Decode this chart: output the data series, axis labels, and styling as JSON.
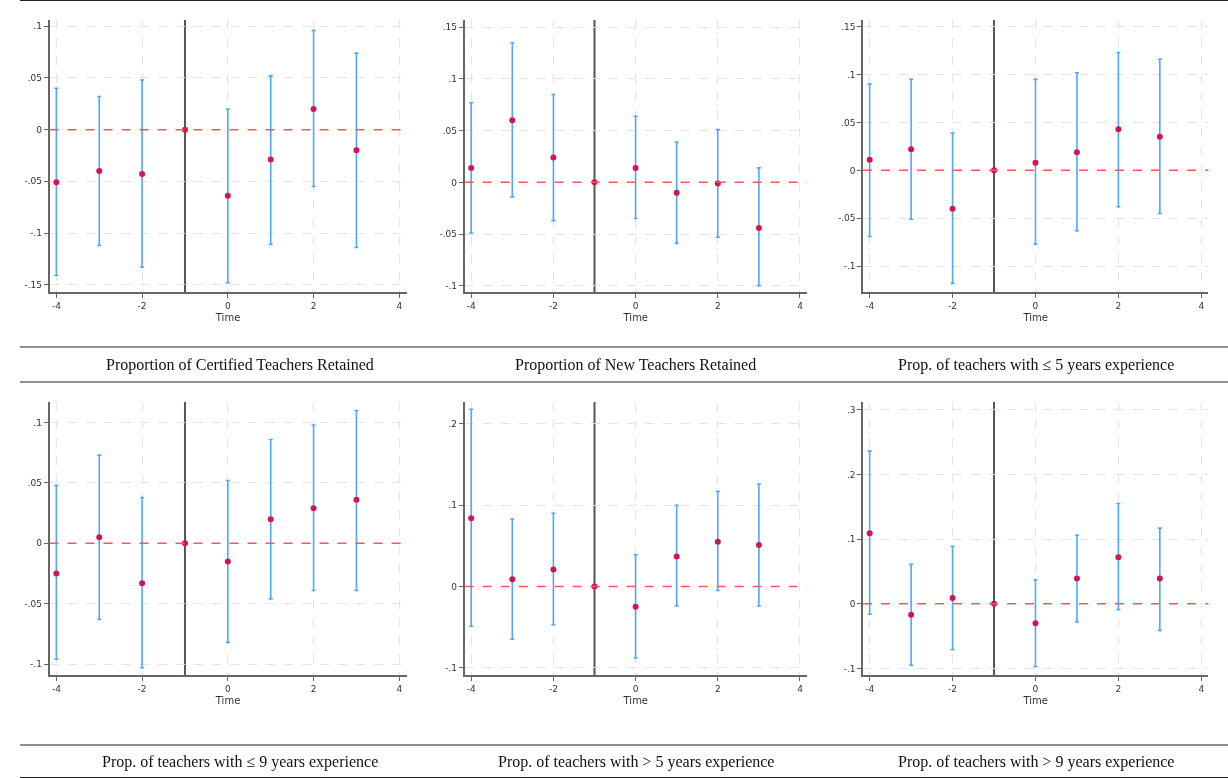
{
  "chart_data": [
    {
      "type": "scatter",
      "title": "Proportion of Certified Teachers Retained",
      "xlabel": "Time",
      "x": [
        -4,
        -3,
        -2,
        -1,
        0,
        1,
        2,
        3
      ],
      "xlim": [
        -4.16,
        4.17
      ],
      "xticks": [
        -4,
        -2,
        0,
        2,
        4
      ],
      "ylim": [
        -0.157,
        0.106
      ],
      "yticks": [
        {
          "value": 0.1,
          "label": ".1"
        },
        {
          "value": 0.05,
          "label": ".05"
        },
        0,
        {
          "value": -0.05,
          "label": "-.05"
        },
        {
          "value": -0.1,
          "label": "-.1"
        },
        {
          "value": -0.15,
          "label": "-.15"
        }
      ],
      "grid": true,
      "marker": "circle",
      "series": [
        {
          "color": "#d6134f",
          "values": [
            -0.051,
            -0.04,
            -0.043,
            0,
            -0.064,
            -0.029,
            0.02,
            -0.02
          ],
          "errors": [
            [
              -0.141,
              0.04
            ],
            [
              -0.112,
              0.032
            ],
            [
              -0.133,
              0.048
            ],
            null,
            [
              -0.148,
              0.02
            ],
            [
              -0.111,
              0.052
            ],
            [
              -0.055,
              0.096
            ],
            [
              -0.114,
              0.074
            ]
          ]
        }
      ],
      "ref_lines": [
        {
          "axis": "y",
          "value": 0,
          "color": "#f05a5a",
          "line_style": "dashed"
        },
        {
          "axis": "x",
          "value": -1,
          "color": "#555555",
          "line_style": "solid"
        }
      ]
    },
    {
      "type": "scatter",
      "title": "Proportion of New Teachers Retained",
      "xlabel": "Time",
      "x": [
        -4,
        -3,
        -2,
        -1,
        0,
        1,
        2,
        3
      ],
      "xlim": [
        -4.16,
        4.17
      ],
      "xticks": [
        -4,
        -2,
        0,
        2,
        4
      ],
      "ylim": [
        -0.106,
        0.157
      ],
      "yticks": [
        {
          "value": 0.15,
          "label": ".15"
        },
        {
          "value": 0.1,
          "label": ".1"
        },
        {
          "value": 0.05,
          "label": ".05"
        },
        0,
        {
          "value": -0.05,
          "label": "-.05"
        },
        {
          "value": -0.1,
          "label": "-.1"
        }
      ],
      "grid": true,
      "marker": "circle",
      "series": [
        {
          "color": "#d6134f",
          "values": [
            0.014,
            0.06,
            0.024,
            0,
            0.014,
            -0.01,
            -0.001,
            -0.044
          ],
          "errors": [
            [
              -0.049,
              0.077
            ],
            [
              -0.014,
              0.135
            ],
            [
              -0.037,
              0.085
            ],
            null,
            [
              -0.035,
              0.064
            ],
            [
              -0.059,
              0.039
            ],
            [
              -0.053,
              0.051
            ],
            [
              -0.1,
              0.014
            ]
          ]
        }
      ],
      "ref_lines": [
        {
          "axis": "y",
          "value": 0,
          "color": "#f05a5a",
          "line_style": "dashed"
        },
        {
          "axis": "x",
          "value": -1,
          "color": "#555555",
          "line_style": "solid"
        }
      ]
    },
    {
      "type": "scatter",
      "title": "Prop. of teachers with ≤ 5 years experience",
      "xlabel": "Time",
      "x": [
        -4,
        -3,
        -2,
        -1,
        0,
        1,
        2,
        3
      ],
      "xlim": [
        -4.16,
        4.17
      ],
      "xticks": [
        -4,
        -2,
        0,
        2,
        4
      ],
      "ylim": [
        -0.127,
        0.157
      ],
      "yticks": [
        {
          "value": 0.15,
          "label": ".15"
        },
        {
          "value": 0.1,
          "label": ".1"
        },
        {
          "value": 0.05,
          "label": ".05"
        },
        0,
        {
          "value": -0.05,
          "label": "-.05"
        },
        {
          "value": -0.1,
          "label": "-.1"
        }
      ],
      "grid": true,
      "marker": "circle",
      "series": [
        {
          "color": "#d6134f",
          "values": [
            0.011,
            0.022,
            -0.04,
            0,
            0.008,
            0.019,
            0.043,
            0.035
          ],
          "errors": [
            [
              -0.069,
              0.09
            ],
            [
              -0.051,
              0.095
            ],
            [
              -0.118,
              0.039
            ],
            null,
            [
              -0.077,
              0.095
            ],
            [
              -0.063,
              0.102
            ],
            [
              -0.038,
              0.123
            ],
            [
              -0.045,
              0.116
            ]
          ]
        }
      ],
      "ref_lines": [
        {
          "axis": "y",
          "value": 0,
          "color": "#f05a5a",
          "line_style": "dashed"
        },
        {
          "axis": "x",
          "value": -1,
          "color": "#555555",
          "line_style": "solid"
        }
      ]
    },
    {
      "type": "scatter",
      "title": "Prop. of teachers with ≤ 9 years experience",
      "xlabel": "Time",
      "x": [
        -4,
        -3,
        -2,
        -1,
        0,
        1,
        2,
        3
      ],
      "xlim": [
        -4.16,
        4.17
      ],
      "xticks": [
        -4,
        -2,
        0,
        2,
        4
      ],
      "ylim": [
        -0.109,
        0.117
      ],
      "yticks": [
        {
          "value": 0.1,
          "label": ".1"
        },
        {
          "value": 0.05,
          "label": ".05"
        },
        0,
        {
          "value": -0.05,
          "label": "-.05"
        },
        {
          "value": -0.1,
          "label": "-.1"
        }
      ],
      "grid": true,
      "marker": "circle",
      "series": [
        {
          "color": "#d6134f",
          "values": [
            -0.025,
            0.005,
            -0.033,
            0,
            -0.015,
            0.02,
            0.029,
            0.036
          ],
          "errors": [
            [
              -0.096,
              0.048
            ],
            [
              -0.063,
              0.073
            ],
            [
              -0.103,
              0.038
            ],
            null,
            [
              -0.082,
              0.052
            ],
            [
              -0.046,
              0.086
            ],
            [
              -0.039,
              0.098
            ],
            [
              -0.039,
              0.11
            ]
          ]
        }
      ],
      "ref_lines": [
        {
          "axis": "y",
          "value": 0,
          "color": "#f05a5a",
          "line_style": "dashed"
        },
        {
          "axis": "x",
          "value": -1,
          "color": "#555555",
          "line_style": "solid"
        }
      ]
    },
    {
      "type": "scatter",
      "title": "Prop. of teachers with > 5 years experience",
      "xlabel": "Time",
      "x": [
        -4,
        -3,
        -2,
        -1,
        0,
        1,
        2,
        3
      ],
      "xlim": [
        -4.16,
        4.17
      ],
      "xticks": [
        -4,
        -2,
        0,
        2,
        4
      ],
      "ylim": [
        -0.109,
        0.227
      ],
      "yticks": [
        {
          "value": 0.2,
          "label": ".2"
        },
        {
          "value": 0.1,
          "label": ".1"
        },
        0,
        {
          "value": -0.1,
          "label": "-.1"
        }
      ],
      "grid": true,
      "marker": "circle",
      "series": [
        {
          "color": "#d6134f",
          "values": [
            0.084,
            0.009,
            0.021,
            0,
            -0.025,
            0.037,
            0.055,
            0.051
          ],
          "errors": [
            [
              -0.049,
              0.218
            ],
            [
              -0.065,
              0.083
            ],
            [
              -0.047,
              0.09
            ],
            null,
            [
              -0.088,
              0.039
            ],
            [
              -0.024,
              0.1
            ],
            [
              -0.005,
              0.117
            ],
            [
              -0.024,
              0.126
            ]
          ]
        }
      ],
      "ref_lines": [
        {
          "axis": "y",
          "value": 0,
          "color": "#f05a5a",
          "line_style": "dashed"
        },
        {
          "axis": "x",
          "value": -1,
          "color": "#555555",
          "line_style": "solid"
        }
      ]
    },
    {
      "type": "scatter",
      "title": "Prop. of teachers with > 9 years experience",
      "xlabel": "Time",
      "x": [
        -4,
        -3,
        -2,
        -1,
        0,
        1,
        2,
        3
      ],
      "xlim": [
        -4.16,
        4.17
      ],
      "xticks": [
        -4,
        -2,
        0,
        2,
        4
      ],
      "ylim": [
        -0.11,
        0.312
      ],
      "yticks": [
        {
          "value": 0.3,
          "label": ".3"
        },
        {
          "value": 0.2,
          "label": ".2"
        },
        {
          "value": 0.1,
          "label": ".1"
        },
        0,
        {
          "value": -0.1,
          "label": "-.1"
        }
      ],
      "grid": true,
      "marker": "circle",
      "series": [
        {
          "color": "#d6134f",
          "values": [
            0.109,
            -0.017,
            0.009,
            0,
            -0.03,
            0.039,
            0.072,
            0.039
          ],
          "errors": [
            [
              -0.016,
              0.236
            ],
            [
              -0.095,
              0.061
            ],
            [
              -0.071,
              0.089
            ],
            null,
            [
              -0.097,
              0.037
            ],
            [
              -0.028,
              0.106
            ],
            [
              -0.009,
              0.155
            ],
            [
              -0.041,
              0.117
            ]
          ]
        }
      ],
      "ref_lines": [
        {
          "axis": "y",
          "value": 0,
          "color": "#f05a5a",
          "line_style": "dashed"
        },
        {
          "axis": "x",
          "value": -1,
          "color": "#555555",
          "line_style": "solid"
        }
      ]
    }
  ]
}
